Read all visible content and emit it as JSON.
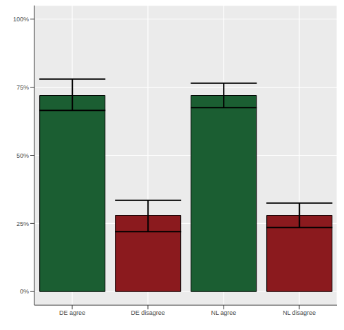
{
  "chart_data": {
    "type": "bar",
    "categories": [
      "DE agree",
      "DE disagree",
      "NL agree",
      "NL disagree"
    ],
    "values": [
      72,
      28,
      72,
      28
    ],
    "error_low": [
      66.5,
      22,
      67.5,
      23.5
    ],
    "error_high": [
      78,
      33.5,
      76.5,
      32.5
    ],
    "colors": [
      "#1b5e32",
      "#8b1a1e",
      "#1b5e32",
      "#8b1a1e"
    ],
    "ylim": [
      -5,
      105
    ],
    "yticks": [
      {
        "value": 0,
        "label": "0%"
      },
      {
        "value": 25,
        "label": "25%"
      },
      {
        "value": 50,
        "label": "50%"
      },
      {
        "value": 75,
        "label": "75%"
      },
      {
        "value": 100,
        "label": "100%"
      }
    ],
    "grid": true
  }
}
